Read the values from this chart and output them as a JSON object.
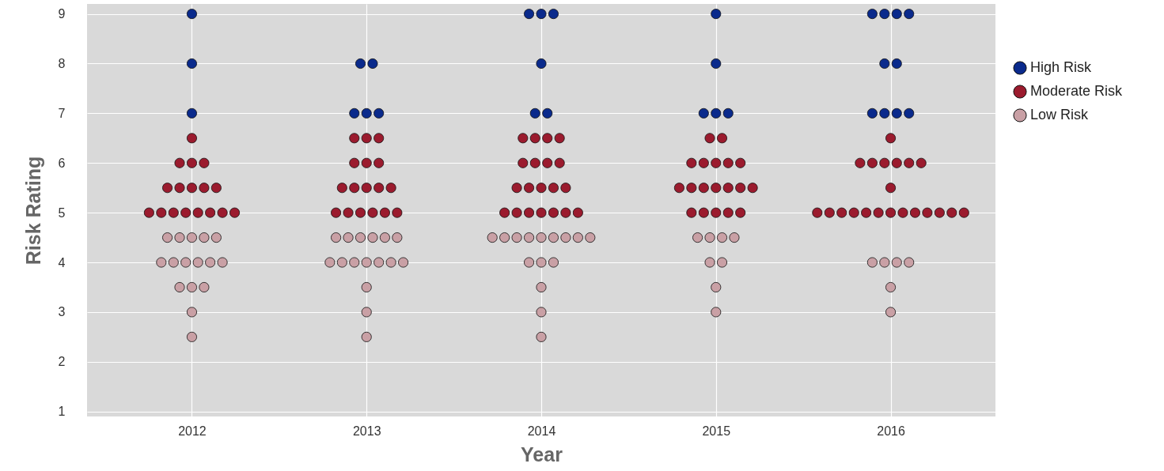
{
  "chart_data": {
    "type": "scatter",
    "xlabel": "Year",
    "ylabel": "Risk Rating",
    "xlim": [
      2011.4,
      2016.6
    ],
    "xticks": [
      2012,
      2013,
      2014,
      2015,
      2016
    ],
    "ylim": [
      0.9,
      9.2
    ],
    "yticks": [
      1,
      2,
      3,
      4,
      5,
      6,
      7,
      8,
      9
    ],
    "grid": true,
    "legend": "right",
    "marker": "circle",
    "series": [
      {
        "name": "High Risk",
        "color": "#0a2a8c",
        "x": [
          2012,
          2012,
          2012,
          2012.965,
          2013.035,
          2012.93,
          2013,
          2013.07,
          2013.93,
          2014,
          2014.07,
          2014,
          2013.965,
          2014.035,
          2015,
          2015,
          2014.93,
          2015,
          2015.07,
          2015.895,
          2015.965,
          2016.035,
          2016.105,
          2015.965,
          2016.035,
          2015.895,
          2015.965,
          2016.035,
          2016.105
        ],
        "values": [
          9,
          8,
          7,
          8,
          8,
          7,
          7,
          7,
          9,
          9,
          9,
          8,
          7,
          7,
          9,
          8,
          7,
          7,
          7,
          9,
          9,
          9,
          9,
          8,
          8,
          7,
          7,
          7,
          7
        ]
      },
      {
        "name": "Moderate Risk",
        "color": "#9b1b2e",
        "x": [
          2012,
          2011.93,
          2012,
          2012.07,
          2011.86,
          2011.93,
          2012,
          2012.07,
          2012.14,
          2011.755,
          2011.825,
          2011.895,
          2011.965,
          2012.035,
          2012.105,
          2012.175,
          2012.245,
          2012.93,
          2013,
          2013.07,
          2012.93,
          2013,
          2013.07,
          2012.86,
          2012.93,
          2013,
          2013.07,
          2013.14,
          2012.825,
          2012.895,
          2012.965,
          2013.035,
          2013.105,
          2013.175,
          2013.895,
          2013.965,
          2014.035,
          2014.105,
          2013.895,
          2013.965,
          2014.035,
          2014.105,
          2013.86,
          2013.93,
          2014,
          2014.07,
          2014.14,
          2013.79,
          2013.86,
          2013.93,
          2014,
          2014.07,
          2014.14,
          2014.21,
          2014.965,
          2015.035,
          2014.86,
          2014.93,
          2015,
          2015.07,
          2015.14,
          2014.79,
          2014.86,
          2014.93,
          2015,
          2015.07,
          2015.14,
          2015.21,
          2014.86,
          2014.93,
          2015,
          2015.07,
          2015.14,
          2016,
          2015.825,
          2015.895,
          2015.965,
          2016.035,
          2016.105,
          2016.175,
          2016,
          2015.58,
          2015.65,
          2015.72,
          2015.79,
          2015.86,
          2015.93,
          2016,
          2016.07,
          2016.14,
          2016.21,
          2016.28,
          2016.35,
          2016.42
        ],
        "values": [
          6.5,
          6,
          6,
          6,
          5.5,
          5.5,
          5.5,
          5.5,
          5.5,
          5,
          5,
          5,
          5,
          5,
          5,
          5,
          5,
          6.5,
          6.5,
          6.5,
          6,
          6,
          6,
          5.5,
          5.5,
          5.5,
          5.5,
          5.5,
          5,
          5,
          5,
          5,
          5,
          5,
          6.5,
          6.5,
          6.5,
          6.5,
          6,
          6,
          6,
          6,
          5.5,
          5.5,
          5.5,
          5.5,
          5.5,
          5,
          5,
          5,
          5,
          5,
          5,
          5,
          6.5,
          6.5,
          6,
          6,
          6,
          6,
          6,
          5.5,
          5.5,
          5.5,
          5.5,
          5.5,
          5.5,
          5.5,
          5,
          5,
          5,
          5,
          5,
          6.5,
          6,
          6,
          6,
          6,
          6,
          6,
          5.5,
          5,
          5,
          5,
          5,
          5,
          5,
          5,
          5,
          5,
          5,
          5,
          5,
          5
        ]
      },
      {
        "name": "Low Risk",
        "color": "#c9a0a5",
        "x": [
          2011.86,
          2011.93,
          2012,
          2012.07,
          2012.14,
          2011.825,
          2011.895,
          2011.965,
          2012.035,
          2012.105,
          2012.175,
          2011.93,
          2012,
          2012.07,
          2012,
          2012,
          2012.825,
          2012.895,
          2012.965,
          2013.035,
          2013.105,
          2013.175,
          2012.79,
          2012.86,
          2012.93,
          2013,
          2013.07,
          2013.14,
          2013.21,
          2013,
          2013,
          2013,
          2013.72,
          2013.79,
          2013.86,
          2013.93,
          2014,
          2014.07,
          2014.14,
          2014.21,
          2014.28,
          2013.93,
          2014,
          2014.07,
          2014,
          2014,
          2014,
          2014.895,
          2014.965,
          2015.035,
          2015.105,
          2014.965,
          2015.035,
          2015,
          2015,
          2015.895,
          2015.965,
          2016.035,
          2016.105,
          2016,
          2016
        ],
        "values": [
          4.5,
          4.5,
          4.5,
          4.5,
          4.5,
          4,
          4,
          4,
          4,
          4,
          4,
          3.5,
          3.5,
          3.5,
          3,
          2.5,
          4.5,
          4.5,
          4.5,
          4.5,
          4.5,
          4.5,
          4,
          4,
          4,
          4,
          4,
          4,
          4,
          3.5,
          3,
          2.5,
          4.5,
          4.5,
          4.5,
          4.5,
          4.5,
          4.5,
          4.5,
          4.5,
          4.5,
          4,
          4,
          4,
          3.5,
          3,
          2.5,
          4.5,
          4.5,
          4.5,
          4.5,
          4,
          4,
          3.5,
          3,
          4,
          4,
          4,
          4,
          3.5,
          3
        ]
      }
    ]
  }
}
